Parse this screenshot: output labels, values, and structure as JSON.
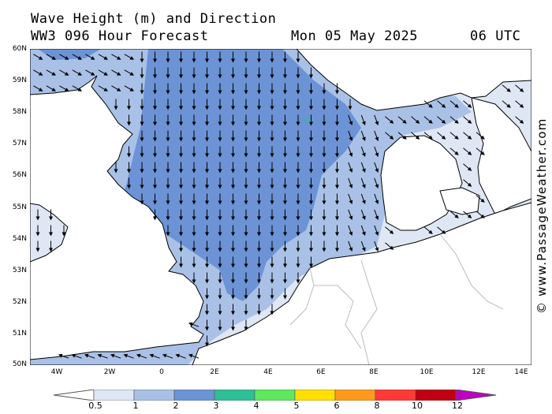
{
  "header": {
    "title_line1": "Wave Height (m) and Direction",
    "title_line2": "WW3 096 Hour Forecast",
    "date": "Mon 05 May 2025",
    "time": "06 UTC"
  },
  "credit": "© www.PassageWeather.com",
  "axes": {
    "lat_labels": [
      "60N",
      "59N",
      "58N",
      "57N",
      "56N",
      "55N",
      "54N",
      "53N",
      "52N",
      "51N",
      "50N"
    ],
    "lon_labels": [
      "4W",
      "2W",
      "0",
      "2E",
      "4E",
      "6E",
      "8E",
      "10E",
      "12E",
      "14E"
    ]
  },
  "legend": {
    "labels": [
      "0.5",
      "1",
      "2",
      "3",
      "4",
      "5",
      "6",
      "8",
      "10",
      "12"
    ],
    "colors": [
      "#dfe7f5",
      "#a9c1e6",
      "#6b93d6",
      "#2dbf97",
      "#5ee85e",
      "#ffe000",
      "#ff9a1a",
      "#ff3838",
      "#c00010",
      "#c000c0"
    ]
  },
  "map": {
    "sea_colors": {
      "calm": "#dfe7f5",
      "low": "#a9c1e6",
      "moderate": "#6b93d6"
    },
    "land_color": "#ffffff",
    "coast_color": "#000000",
    "border_color": "#bbbbbb",
    "arrow_direction": "predominantly north to south (southward) in the North Sea"
  }
}
